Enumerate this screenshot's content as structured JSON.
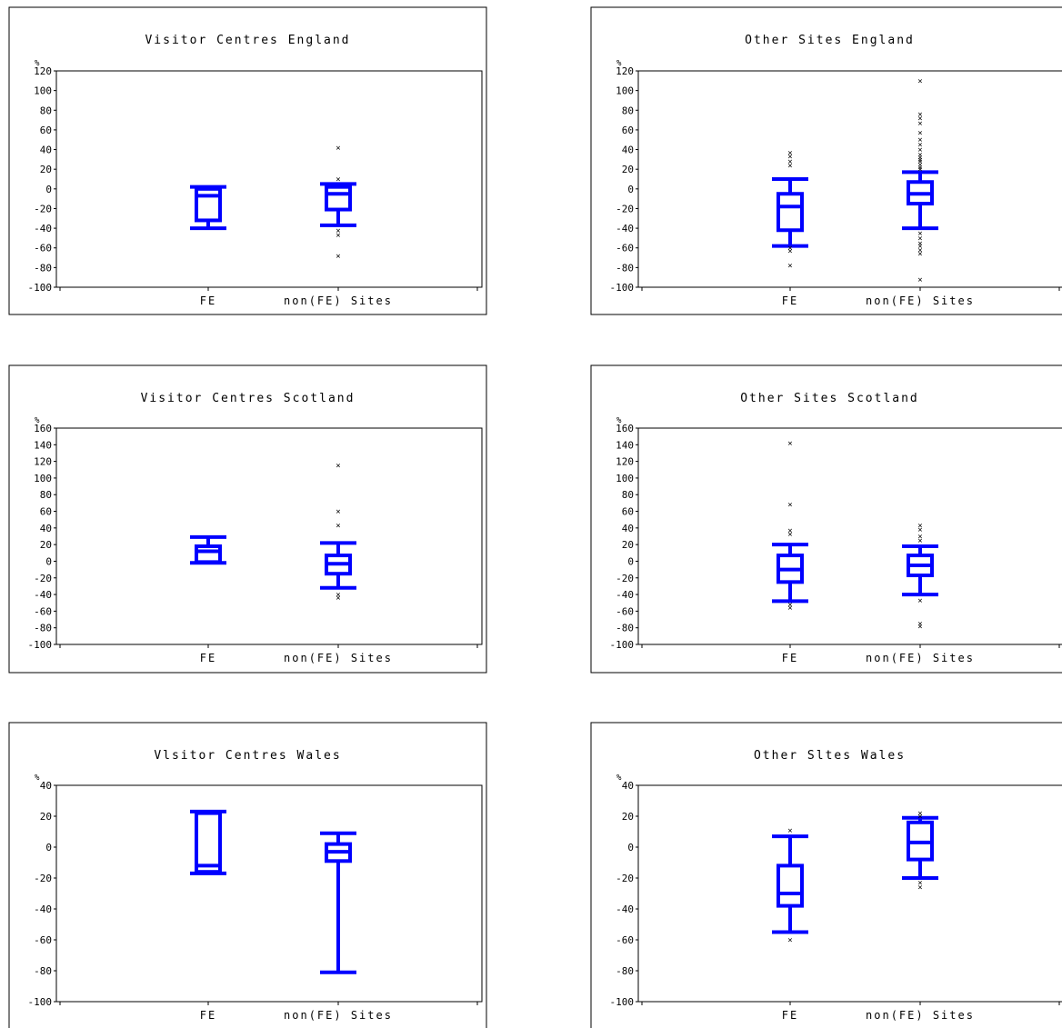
{
  "chart_data": [
    {
      "type": "boxplot",
      "title": "Visitor Centres England",
      "ylabel": "%",
      "categories": [
        "FE",
        "non(FE) Sites"
      ],
      "yticks": [
        120,
        100,
        80,
        60,
        40,
        20,
        0,
        -20,
        -40,
        -60,
        -80,
        -100
      ],
      "ylim": [
        -100,
        120
      ],
      "boxes": [
        {
          "category": "FE",
          "whisker_low": -40,
          "q1": -32,
          "median": -7,
          "q3": 0,
          "whisker_high": 2,
          "outliers": []
        },
        {
          "category": "non(FE) Sites",
          "whisker_low": -37,
          "q1": -21,
          "median": -5,
          "q3": 2,
          "whisker_high": 5,
          "outliers": [
            42,
            10,
            -42,
            -47,
            -68
          ]
        }
      ]
    },
    {
      "type": "boxplot",
      "title": "Other Sites England",
      "ylabel": "%",
      "categories": [
        "FE",
        "non(FE) Sites"
      ],
      "yticks": [
        120,
        100,
        80,
        60,
        40,
        20,
        0,
        -20,
        -40,
        -60,
        -80,
        -100
      ],
      "ylim": [
        -100,
        120
      ],
      "boxes": [
        {
          "category": "FE",
          "whisker_low": -58,
          "q1": -42,
          "median": -18,
          "q3": -5,
          "whisker_high": 10,
          "outliers": [
            37,
            33,
            28,
            24,
            -60,
            -63,
            -78
          ]
        },
        {
          "category": "non(FE) Sites",
          "whisker_low": -40,
          "q1": -15,
          "median": -5,
          "q3": 7,
          "whisker_high": 17,
          "outliers": [
            110,
            76,
            72,
            67,
            57,
            50,
            45,
            40,
            35,
            32,
            30,
            28,
            25,
            22,
            20,
            -45,
            -50,
            -55,
            -58,
            -62,
            -66,
            -92
          ]
        }
      ]
    },
    {
      "type": "boxplot",
      "title": "Visitor Centres Scotland",
      "ylabel": "%",
      "categories": [
        "FE",
        "non(FE) Sites"
      ],
      "yticks": [
        160,
        140,
        120,
        100,
        80,
        60,
        40,
        20,
        0,
        -20,
        -40,
        -60,
        -80,
        -100
      ],
      "ylim": [
        -100,
        160
      ],
      "boxes": [
        {
          "category": "FE",
          "whisker_low": -2,
          "q1": -1,
          "median": 12,
          "q3": 18,
          "whisker_high": 29,
          "outliers": []
        },
        {
          "category": "non(FE) Sites",
          "whisker_low": -32,
          "q1": -15,
          "median": -3,
          "q3": 7,
          "whisker_high": 22,
          "outliers": [
            115,
            60,
            43,
            -40,
            -44
          ]
        }
      ]
    },
    {
      "type": "boxplot",
      "title": "Other Sites Scotland",
      "ylabel": "%",
      "categories": [
        "FE",
        "non(FE) Sites"
      ],
      "yticks": [
        160,
        140,
        120,
        100,
        80,
        60,
        40,
        20,
        0,
        -20,
        -40,
        -60,
        -80,
        -100
      ],
      "ylim": [
        -100,
        160
      ],
      "boxes": [
        {
          "category": "FE",
          "whisker_low": -48,
          "q1": -25,
          "median": -10,
          "q3": 7,
          "whisker_high": 20,
          "outliers": [
            142,
            68,
            37,
            33,
            -52,
            -56
          ]
        },
        {
          "category": "non(FE) Sites",
          "whisker_low": -40,
          "q1": -17,
          "median": -5,
          "q3": 7,
          "whisker_high": 18,
          "outliers": [
            43,
            38,
            30,
            25,
            -47,
            -75,
            -78
          ]
        }
      ]
    },
    {
      "type": "boxplot",
      "title": "Vlsitor Centres Wales",
      "ylabel": "%",
      "categories": [
        "FE",
        "non(FE) Sites"
      ],
      "yticks": [
        40,
        20,
        0,
        -20,
        -40,
        -60,
        -80,
        -100
      ],
      "ylim": [
        -100,
        40
      ],
      "boxes": [
        {
          "category": "FE",
          "whisker_low": -17,
          "q1": -16,
          "median": -12,
          "q3": 22,
          "whisker_high": 23,
          "outliers": []
        },
        {
          "category": "non(FE) Sites",
          "whisker_low": -81,
          "q1": -9,
          "median": -3,
          "q3": 2,
          "whisker_high": 9,
          "outliers": []
        }
      ]
    },
    {
      "type": "boxplot",
      "title": "Other Sltes Wales",
      "ylabel": "%",
      "categories": [
        "FE",
        "non(FE) Sites"
      ],
      "yticks": [
        40,
        20,
        0,
        -20,
        -40,
        -60,
        -80,
        -100
      ],
      "ylim": [
        -100,
        40
      ],
      "boxes": [
        {
          "category": "FE",
          "whisker_low": -55,
          "q1": -38,
          "median": -30,
          "q3": -12,
          "whisker_high": 7,
          "outliers": [
            11,
            -60
          ]
        },
        {
          "category": "non(FE) Sites",
          "whisker_low": -20,
          "q1": -8,
          "median": 3,
          "q3": 16,
          "whisker_high": 19,
          "outliers": [
            22,
            20,
            -23,
            -26
          ]
        }
      ]
    }
  ]
}
